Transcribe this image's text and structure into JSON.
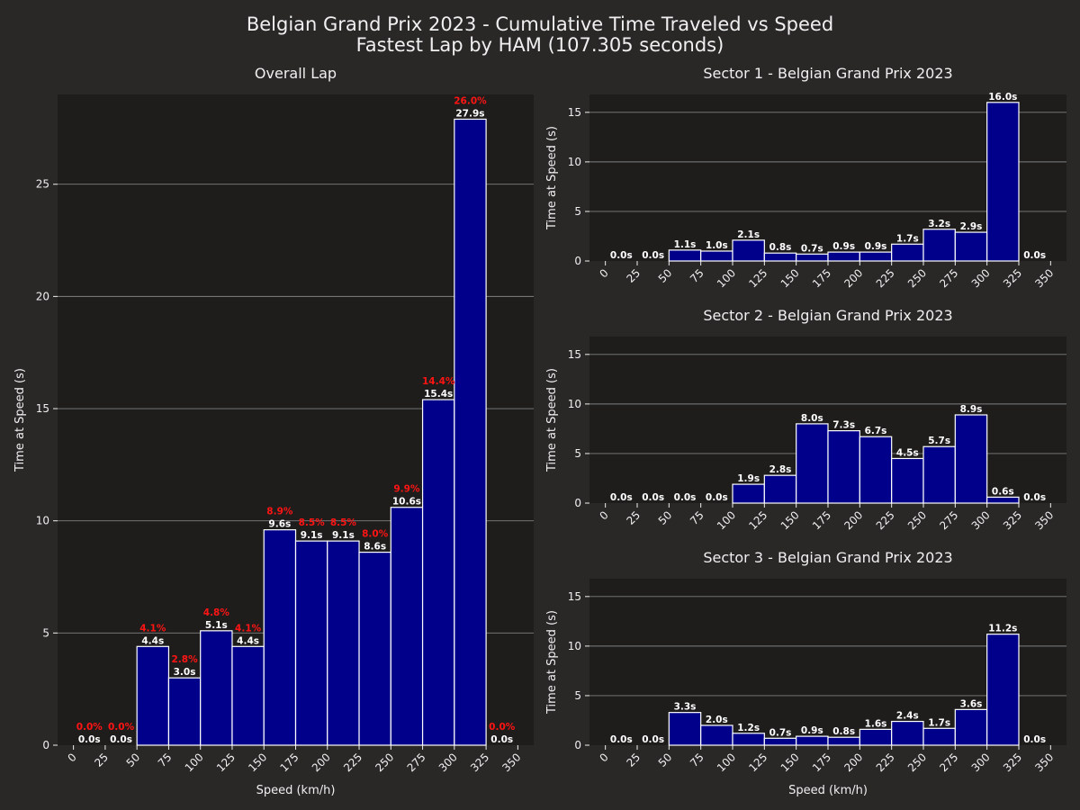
{
  "figure": {
    "title_line1": "Belgian Grand Prix 2023 - Cumulative Time Traveled vs Speed",
    "title_line2": "Fastest Lap by HAM (107.305 seconds)",
    "colors": {
      "background": "#2a2727",
      "plot_background": "#1e1d1c",
      "bar_fill": "#00008b",
      "bar_edge": "#ffffff",
      "grid": "#808080",
      "text": "#f0f0f0",
      "pct_text": "#ff1414"
    }
  },
  "chart_data": [
    {
      "type": "bar",
      "title": "Overall Lap",
      "xlabel": "Speed (km/h)",
      "ylabel": "Time at Speed (s)",
      "bin_edges": [
        0,
        25,
        50,
        75,
        100,
        125,
        150,
        175,
        200,
        225,
        250,
        275,
        300,
        325,
        350
      ],
      "x_ticks": [
        "0",
        "25",
        "50",
        "75",
        "100",
        "125",
        "150",
        "175",
        "200",
        "225",
        "250",
        "275",
        "300",
        "325",
        "350"
      ],
      "ylim": [
        0,
        29
      ],
      "y_ticks": [
        0,
        5,
        10,
        15,
        20,
        25
      ],
      "values": [
        0.0,
        0.0,
        4.4,
        3.0,
        5.1,
        4.4,
        9.6,
        9.1,
        9.1,
        8.6,
        10.6,
        15.4,
        27.9,
        0.0
      ],
      "value_labels": [
        "0.0s",
        "0.0s",
        "4.4s",
        "3.0s",
        "5.1s",
        "4.4s",
        "9.6s",
        "9.1s",
        "9.1s",
        "8.6s",
        "10.6s",
        "15.4s",
        "27.9s",
        "0.0s"
      ],
      "percent_labels": [
        "0.0%",
        "0.0%",
        "4.1%",
        "2.8%",
        "4.8%",
        "4.1%",
        "8.9%",
        "8.5%",
        "8.5%",
        "8.0%",
        "9.9%",
        "14.4%",
        "26.0%",
        "0.0%"
      ],
      "grid": "horizontal"
    },
    {
      "type": "bar",
      "title": "Sector 1 - Belgian Grand Prix 2023",
      "xlabel": "",
      "ylabel": "Time at Speed (s)",
      "bin_edges": [
        0,
        25,
        50,
        75,
        100,
        125,
        150,
        175,
        200,
        225,
        250,
        275,
        300,
        325,
        350
      ],
      "x_ticks": [
        "0",
        "25",
        "50",
        "75",
        "100",
        "125",
        "150",
        "175",
        "200",
        "225",
        "250",
        "275",
        "300",
        "325",
        "350"
      ],
      "ylim": [
        0,
        16.8
      ],
      "y_ticks": [
        0,
        5,
        10,
        15
      ],
      "values": [
        0.0,
        0.0,
        1.1,
        1.0,
        2.1,
        0.8,
        0.7,
        0.9,
        0.9,
        1.7,
        3.2,
        2.9,
        16.0,
        0.0
      ],
      "value_labels": [
        "0.0s",
        "0.0s",
        "1.1s",
        "1.0s",
        "2.1s",
        "0.8s",
        "0.7s",
        "0.9s",
        "0.9s",
        "1.7s",
        "3.2s",
        "2.9s",
        "16.0s",
        "0.0s"
      ],
      "grid": "horizontal"
    },
    {
      "type": "bar",
      "title": "Sector 2 - Belgian Grand Prix 2023",
      "xlabel": "",
      "ylabel": "Time at Speed (s)",
      "bin_edges": [
        0,
        25,
        50,
        75,
        100,
        125,
        150,
        175,
        200,
        225,
        250,
        275,
        300,
        325,
        350
      ],
      "x_ticks": [
        "0",
        "25",
        "50",
        "75",
        "100",
        "125",
        "150",
        "175",
        "200",
        "225",
        "250",
        "275",
        "300",
        "325",
        "350"
      ],
      "ylim": [
        0,
        16.8
      ],
      "y_ticks": [
        0,
        5,
        10,
        15
      ],
      "values": [
        0.0,
        0.0,
        0.0,
        0.0,
        1.9,
        2.8,
        8.0,
        7.3,
        6.7,
        4.5,
        5.7,
        8.9,
        0.6,
        0.0
      ],
      "value_labels": [
        "0.0s",
        "0.0s",
        "0.0s",
        "0.0s",
        "1.9s",
        "2.8s",
        "8.0s",
        "7.3s",
        "6.7s",
        "4.5s",
        "5.7s",
        "8.9s",
        "0.6s",
        "0.0s"
      ],
      "grid": "horizontal"
    },
    {
      "type": "bar",
      "title": "Sector 3 - Belgian Grand Prix 2023",
      "xlabel": "Speed (km/h)",
      "ylabel": "Time at Speed (s)",
      "bin_edges": [
        0,
        25,
        50,
        75,
        100,
        125,
        150,
        175,
        200,
        225,
        250,
        275,
        300,
        325,
        350
      ],
      "x_ticks": [
        "0",
        "25",
        "50",
        "75",
        "100",
        "125",
        "150",
        "175",
        "200",
        "225",
        "250",
        "275",
        "300",
        "325",
        "350"
      ],
      "ylim": [
        0,
        16.8
      ],
      "y_ticks": [
        0,
        5,
        10,
        15
      ],
      "values": [
        0.0,
        0.0,
        3.3,
        2.0,
        1.2,
        0.7,
        0.9,
        0.8,
        1.6,
        2.4,
        1.7,
        3.6,
        11.2,
        0.0
      ],
      "value_labels": [
        "0.0s",
        "0.0s",
        "3.3s",
        "2.0s",
        "1.2s",
        "0.7s",
        "0.9s",
        "0.8s",
        "1.6s",
        "2.4s",
        "1.7s",
        "3.6s",
        "11.2s",
        "0.0s"
      ],
      "grid": "horizontal"
    }
  ]
}
